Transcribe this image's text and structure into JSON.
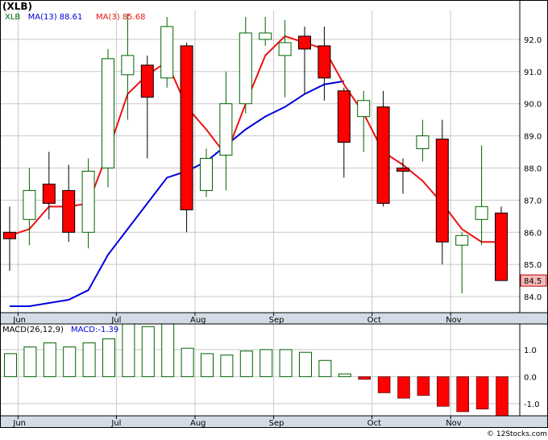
{
  "colors": {
    "up_body": "#ffffff",
    "up_border": "#006400",
    "down_body": "#ff0000",
    "down_border": "#000000",
    "ma13": "#0000dd",
    "ma3": "#ee1111",
    "grid": "#c8c8c8",
    "axis_strip": "#d3dbe6",
    "macd_up": "#006400",
    "macd_down": "#ff0000",
    "last_price_box": "#f4b8b8",
    "frame": "#000000"
  },
  "chart_data": [
    {
      "type": "candlestick",
      "symbol": "(XLB)",
      "legend": [
        {
          "label": "XLB"
        },
        {
          "label": "MA(13)",
          "value": "88.61",
          "color": "#0000dd"
        },
        {
          "label": "MA(3)",
          "value": "85.68",
          "color": "#ee1111"
        }
      ],
      "ylim": [
        83.5,
        92.9
      ],
      "yticks": [
        "84.0",
        "85.0",
        "86.0",
        "87.0",
        "88.0",
        "89.0",
        "90.0",
        "91.0",
        "92.0"
      ],
      "last_price_label": "84.5",
      "months": [
        {
          "label": "Jun",
          "index": 1
        },
        {
          "label": "Jul",
          "index": 6
        },
        {
          "label": "Aug",
          "index": 10
        },
        {
          "label": "Sep",
          "index": 14
        },
        {
          "label": "Oct",
          "index": 19
        },
        {
          "label": "Nov",
          "index": 23
        }
      ],
      "candles": [
        {
          "o": 86.0,
          "h": 86.8,
          "l": 84.8,
          "c": 85.8
        },
        {
          "o": 86.4,
          "h": 88.0,
          "l": 85.6,
          "c": 87.3
        },
        {
          "o": 87.5,
          "h": 88.5,
          "l": 86.4,
          "c": 86.9
        },
        {
          "o": 87.3,
          "h": 88.1,
          "l": 85.7,
          "c": 86.0
        },
        {
          "o": 86.0,
          "h": 88.3,
          "l": 85.5,
          "c": 87.9
        },
        {
          "o": 88.0,
          "h": 91.7,
          "l": 87.4,
          "c": 91.4
        },
        {
          "o": 90.9,
          "h": 92.8,
          "l": 89.5,
          "c": 91.5
        },
        {
          "o": 91.2,
          "h": 91.5,
          "l": 88.3,
          "c": 90.2
        },
        {
          "o": 90.8,
          "h": 92.7,
          "l": 90.5,
          "c": 92.4
        },
        {
          "o": 91.8,
          "h": 91.9,
          "l": 86.0,
          "c": 86.7
        },
        {
          "o": 87.3,
          "h": 88.6,
          "l": 87.1,
          "c": 88.3
        },
        {
          "o": 88.4,
          "h": 91.0,
          "l": 87.3,
          "c": 90.0
        },
        {
          "o": 90.0,
          "h": 92.7,
          "l": 89.7,
          "c": 92.2
        },
        {
          "o": 92.0,
          "h": 92.7,
          "l": 91.8,
          "c": 92.2
        },
        {
          "o": 91.5,
          "h": 92.6,
          "l": 90.2,
          "c": 91.9
        },
        {
          "o": 92.1,
          "h": 92.4,
          "l": 90.3,
          "c": 91.7
        },
        {
          "o": 91.8,
          "h": 92.4,
          "l": 90.1,
          "c": 90.8
        },
        {
          "o": 90.4,
          "h": 90.5,
          "l": 87.7,
          "c": 88.8
        },
        {
          "o": 89.6,
          "h": 90.4,
          "l": 88.5,
          "c": 90.1
        },
        {
          "o": 89.9,
          "h": 90.4,
          "l": 86.8,
          "c": 86.9
        },
        {
          "o": 88.0,
          "h": 88.3,
          "l": 87.2,
          "c": 87.9
        },
        {
          "o": 88.6,
          "h": 89.5,
          "l": 88.2,
          "c": 89.0
        },
        {
          "o": 88.9,
          "h": 89.5,
          "l": 85.0,
          "c": 85.7
        },
        {
          "o": 85.6,
          "h": 86.0,
          "l": 84.1,
          "c": 85.9
        },
        {
          "o": 86.4,
          "h": 88.7,
          "l": 85.6,
          "c": 86.8
        },
        {
          "o": 86.6,
          "h": 86.8,
          "l": 84.5,
          "c": 84.5
        }
      ],
      "ma13": [
        {
          "i": 0,
          "v": 83.7
        },
        {
          "i": 1,
          "v": 83.7
        },
        {
          "i": 2,
          "v": 83.8
        },
        {
          "i": 3,
          "v": 83.9
        },
        {
          "i": 4,
          "v": 84.2
        },
        {
          "i": 5,
          "v": 85.3
        },
        {
          "i": 6,
          "v": 86.1
        },
        {
          "i": 7,
          "v": 86.9
        },
        {
          "i": 8,
          "v": 87.7
        },
        {
          "i": 9,
          "v": 87.9
        },
        {
          "i": 10,
          "v": 88.2
        },
        {
          "i": 11,
          "v": 88.7
        },
        {
          "i": 12,
          "v": 89.2
        },
        {
          "i": 13,
          "v": 89.6
        },
        {
          "i": 14,
          "v": 89.9
        },
        {
          "i": 15,
          "v": 90.3
        },
        {
          "i": 16,
          "v": 90.6
        },
        {
          "i": 17,
          "v": 90.7
        }
      ],
      "ma3": [
        {
          "i": 0,
          "v": 85.9
        },
        {
          "i": 1,
          "v": 86.1
        },
        {
          "i": 2,
          "v": 86.8
        },
        {
          "i": 3,
          "v": 86.8
        },
        {
          "i": 4,
          "v": 86.9
        },
        {
          "i": 5,
          "v": 88.5
        },
        {
          "i": 6,
          "v": 90.3
        },
        {
          "i": 7,
          "v": 90.9
        },
        {
          "i": 8,
          "v": 91.3
        },
        {
          "i": 9,
          "v": 89.9
        },
        {
          "i": 10,
          "v": 89.2
        },
        {
          "i": 11,
          "v": 88.4
        },
        {
          "i": 12,
          "v": 90.0
        },
        {
          "i": 13,
          "v": 91.5
        },
        {
          "i": 14,
          "v": 92.1
        },
        {
          "i": 15,
          "v": 91.9
        },
        {
          "i": 16,
          "v": 91.7
        },
        {
          "i": 17,
          "v": 90.6
        },
        {
          "i": 18,
          "v": 89.7
        },
        {
          "i": 19,
          "v": 88.5
        },
        {
          "i": 20,
          "v": 88.1
        },
        {
          "i": 21,
          "v": 87.6
        },
        {
          "i": 22,
          "v": 86.9
        },
        {
          "i": 23,
          "v": 86.1
        },
        {
          "i": 24,
          "v": 85.7
        },
        {
          "i": 25,
          "v": 85.7
        }
      ]
    },
    {
      "type": "bar",
      "title": "MACD(26,12,9)",
      "legend": [
        {
          "label": "MACD:",
          "value": "-1.39",
          "color": "#0000dd"
        }
      ],
      "ylim": [
        -1.45,
        1.95
      ],
      "yticks": [
        "1.0",
        "0.0",
        "-1.0"
      ],
      "values": [
        0.85,
        1.1,
        1.25,
        1.1,
        1.25,
        1.4,
        1.95,
        1.85,
        1.95,
        1.05,
        0.85,
        0.8,
        0.95,
        1.0,
        1.0,
        0.9,
        0.6,
        0.1,
        -0.1,
        -0.6,
        -0.8,
        -0.7,
        -1.1,
        -1.3,
        -1.2,
        -1.45
      ]
    }
  ],
  "watermark": "© 12Stocks.com"
}
